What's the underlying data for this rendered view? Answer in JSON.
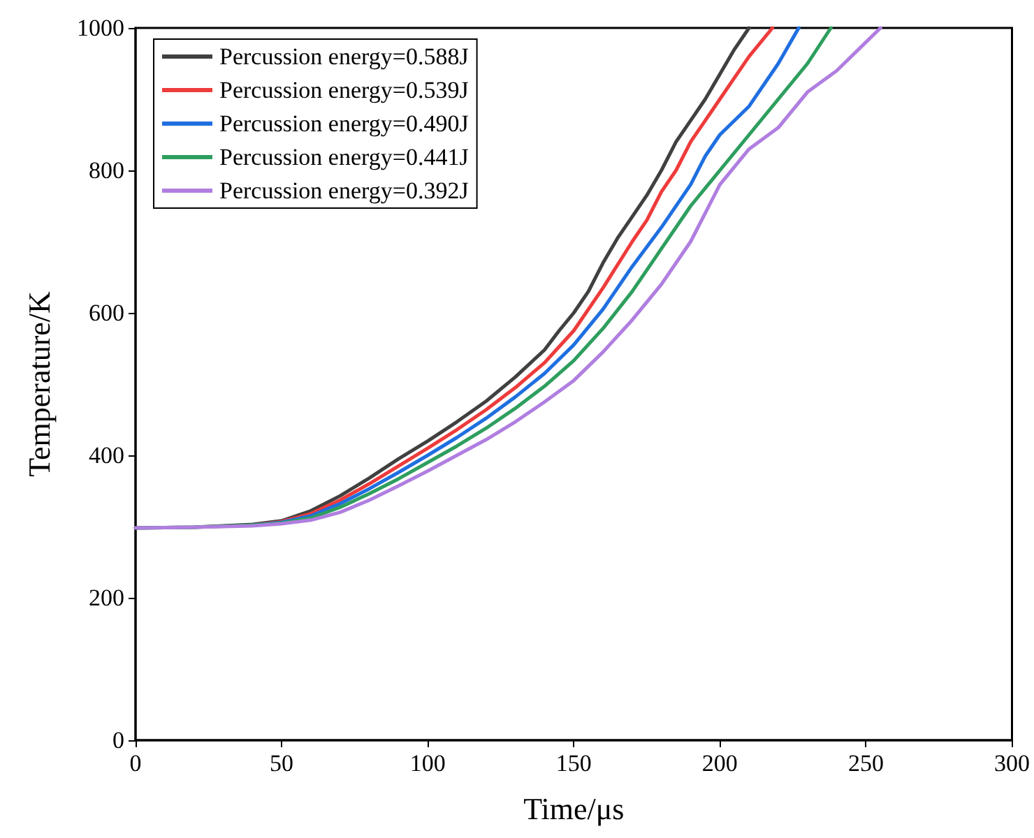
{
  "chart_data": {
    "type": "line",
    "xlabel": "Time/μs",
    "ylabel": "Temperature/K",
    "xlim": [
      0,
      300
    ],
    "xticks": [
      0,
      50,
      100,
      150,
      200,
      250,
      300
    ],
    "ylim": [
      0,
      1000
    ],
    "yticks": [
      0,
      200,
      400,
      600,
      800,
      1000
    ],
    "grid": false,
    "legend": "top left",
    "marker": "none",
    "line_style": "solid",
    "series": [
      {
        "name": "Percussion energy=0.588J",
        "color": "#404040",
        "x": [
          0,
          20,
          40,
          50,
          60,
          70,
          80,
          90,
          100,
          110,
          120,
          130,
          140,
          145,
          150,
          155,
          160,
          165,
          170,
          175,
          180,
          185,
          190,
          195,
          200,
          205,
          210
        ],
        "values": [
          298,
          299,
          303,
          308,
          322,
          343,
          368,
          395,
          420,
          447,
          476,
          510,
          548,
          575,
          600,
          630,
          670,
          705,
          735,
          765,
          800,
          840,
          870,
          900,
          935,
          970,
          1000
        ]
      },
      {
        "name": "Percussion energy=0.539J",
        "color": "#ee3b3b",
        "x": [
          40,
          50,
          60,
          70,
          80,
          90,
          100,
          110,
          120,
          130,
          140,
          150,
          160,
          170,
          175,
          180,
          185,
          190,
          195,
          200,
          205,
          210,
          218
        ],
        "values": [
          302,
          307,
          318,
          337,
          360,
          385,
          410,
          436,
          464,
          495,
          530,
          575,
          635,
          700,
          730,
          770,
          800,
          840,
          870,
          900,
          930,
          960,
          1000
        ]
      },
      {
        "name": "Percussion energy=0.490J",
        "color": "#1f6fe0",
        "x": [
          40,
          50,
          60,
          70,
          80,
          90,
          100,
          110,
          120,
          130,
          140,
          150,
          160,
          170,
          180,
          190,
          195,
          200,
          210,
          220,
          227
        ],
        "values": [
          302,
          306,
          315,
          332,
          353,
          376,
          400,
          425,
          452,
          482,
          515,
          555,
          605,
          665,
          720,
          780,
          820,
          850,
          890,
          950,
          1000
        ]
      },
      {
        "name": "Percussion energy=0.441J",
        "color": "#2e9e5e",
        "x": [
          0,
          20,
          40,
          50,
          60,
          70,
          80,
          90,
          100,
          110,
          120,
          130,
          140,
          150,
          160,
          170,
          180,
          190,
          200,
          210,
          220,
          230,
          238
        ],
        "values": [
          298,
          299,
          302,
          305,
          312,
          327,
          346,
          367,
          390,
          413,
          438,
          466,
          497,
          533,
          578,
          630,
          690,
          750,
          800,
          850,
          900,
          950,
          1000
        ]
      },
      {
        "name": "Percussion energy=0.392J",
        "color": "#b07ee0",
        "x": [
          0,
          20,
          40,
          50,
          60,
          70,
          80,
          90,
          100,
          110,
          120,
          130,
          140,
          150,
          160,
          170,
          180,
          190,
          200,
          210,
          220,
          230,
          240,
          250,
          255
        ],
        "values": [
          298,
          299,
          301,
          304,
          309,
          320,
          337,
          357,
          378,
          400,
          422,
          447,
          475,
          505,
          545,
          590,
          640,
          700,
          780,
          830,
          860,
          910,
          940,
          980,
          1000
        ]
      }
    ]
  }
}
